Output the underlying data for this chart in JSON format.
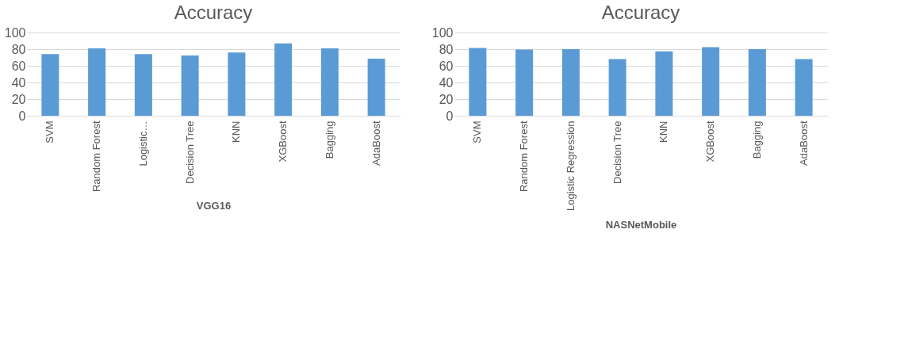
{
  "chart_data": [
    {
      "type": "bar",
      "title": "Accuracy",
      "xlabel": "VGG16",
      "categories": [
        "SVM",
        "Random Forest",
        "Logistic…",
        "Decision Tree",
        "KNN",
        "XGBoost",
        "Bagging",
        "AdaBoost"
      ],
      "values": [
        74,
        81,
        74,
        72.5,
        76,
        87,
        81,
        68.5
      ],
      "color": "#5b9bd5",
      "ylim": [
        0,
        100
      ],
      "yticks": [
        0,
        20,
        40,
        60,
        80,
        100
      ],
      "grid": "y"
    },
    {
      "type": "bar",
      "title": "Accuracy",
      "xlabel": "NASNetMobile",
      "categories": [
        "SVM",
        "Random Forest",
        "Logistic Regression",
        "Decision Tree",
        "KNN",
        "XGBoost",
        "Bagging",
        "AdaBoost"
      ],
      "values": [
        81.5,
        79.5,
        80,
        68,
        77.5,
        82.5,
        80,
        68
      ],
      "color": "#5b9bd5",
      "ylim": [
        0,
        100
      ],
      "yticks": [
        0,
        20,
        40,
        60,
        80,
        100
      ],
      "grid": "y"
    }
  ]
}
